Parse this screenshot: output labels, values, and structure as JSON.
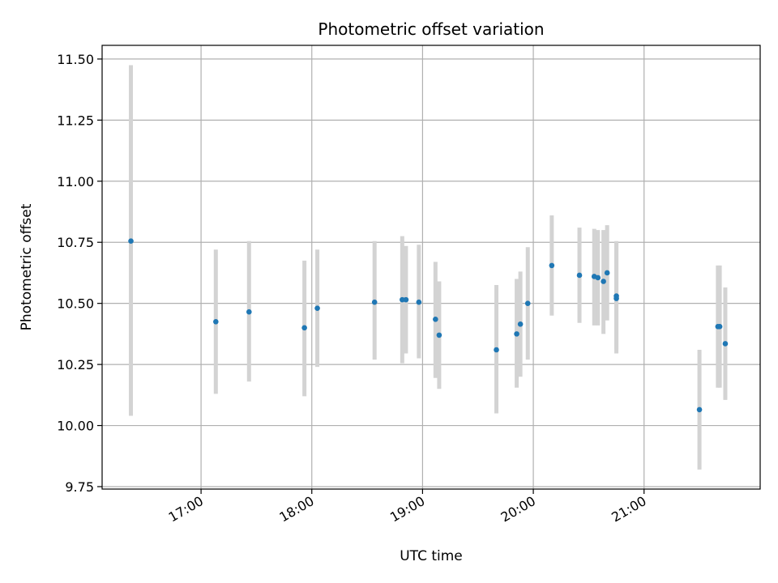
{
  "chart_data": {
    "type": "scatter",
    "title": "Photometric offset variation",
    "xlabel": "UTC time",
    "ylabel": "Photometric offset",
    "xlim_minutes": [
      966.4,
      1322.9
    ],
    "ylim": [
      9.74,
      11.556
    ],
    "x_ticks": [
      {
        "label": "17:00",
        "minutes": 1020
      },
      {
        "label": "18:00",
        "minutes": 1080
      },
      {
        "label": "19:00",
        "minutes": 1140
      },
      {
        "label": "20:00",
        "minutes": 1200
      },
      {
        "label": "21:00",
        "minutes": 1260
      }
    ],
    "y_ticks": [
      {
        "label": "9.75",
        "value": 9.75
      },
      {
        "label": "10.00",
        "value": 10.0
      },
      {
        "label": "10.25",
        "value": 10.25
      },
      {
        "label": "10.50",
        "value": 10.5
      },
      {
        "label": "10.75",
        "value": 10.75
      },
      {
        "label": "11.00",
        "value": 11.0
      },
      {
        "label": "11.25",
        "value": 11.25
      },
      {
        "label": "11.50",
        "value": 11.5
      }
    ],
    "grid": true,
    "point_color": "#1f77b4",
    "errorbar_color": "#d3d3d3",
    "points": [
      {
        "time": "16:22",
        "y": 10.755,
        "lo": 10.04,
        "hi": 11.475
      },
      {
        "time": "17:08",
        "y": 10.425,
        "lo": 10.13,
        "hi": 10.72
      },
      {
        "time": "17:26",
        "y": 10.465,
        "lo": 10.18,
        "hi": 10.755
      },
      {
        "time": "17:56",
        "y": 10.4,
        "lo": 10.12,
        "hi": 10.675
      },
      {
        "time": "18:03",
        "y": 10.48,
        "lo": 10.24,
        "hi": 10.72
      },
      {
        "time": "18:34",
        "y": 10.505,
        "lo": 10.27,
        "hi": 10.755
      },
      {
        "time": "18:49",
        "y": 10.515,
        "lo": 10.255,
        "hi": 10.775
      },
      {
        "time": "18:51",
        "y": 10.515,
        "lo": 10.295,
        "hi": 10.735
      },
      {
        "time": "18:58",
        "y": 10.505,
        "lo": 10.275,
        "hi": 10.74
      },
      {
        "time": "19:07",
        "y": 10.435,
        "lo": 10.195,
        "hi": 10.67
      },
      {
        "time": "19:09",
        "y": 10.37,
        "lo": 10.15,
        "hi": 10.59
      },
      {
        "time": "19:40",
        "y": 10.31,
        "lo": 10.05,
        "hi": 10.575
      },
      {
        "time": "19:51",
        "y": 10.375,
        "lo": 10.155,
        "hi": 10.6
      },
      {
        "time": "19:53",
        "y": 10.415,
        "lo": 10.2,
        "hi": 10.63
      },
      {
        "time": "19:57",
        "y": 10.5,
        "lo": 10.27,
        "hi": 10.73
      },
      {
        "time": "20:10",
        "y": 10.655,
        "lo": 10.45,
        "hi": 10.86
      },
      {
        "time": "20:25",
        "y": 10.615,
        "lo": 10.42,
        "hi": 10.81
      },
      {
        "time": "20:33",
        "y": 10.61,
        "lo": 10.41,
        "hi": 10.805
      },
      {
        "time": "20:35",
        "y": 10.605,
        "lo": 10.41,
        "hi": 10.8
      },
      {
        "time": "20:38",
        "y": 10.59,
        "lo": 10.375,
        "hi": 10.8
      },
      {
        "time": "20:40",
        "y": 10.625,
        "lo": 10.43,
        "hi": 10.82
      },
      {
        "time": "20:45",
        "y": 10.53,
        "lo": 10.31,
        "hi": 10.755
      },
      {
        "time": "20:45",
        "y": 10.52,
        "lo": 10.295,
        "hi": 10.75
      },
      {
        "time": "21:30",
        "y": 10.065,
        "lo": 9.82,
        "hi": 10.31
      },
      {
        "time": "21:40",
        "y": 10.405,
        "lo": 10.155,
        "hi": 10.655
      },
      {
        "time": "21:41",
        "y": 10.405,
        "lo": 10.155,
        "hi": 10.655
      },
      {
        "time": "21:44",
        "y": 10.335,
        "lo": 10.105,
        "hi": 10.565
      }
    ]
  }
}
